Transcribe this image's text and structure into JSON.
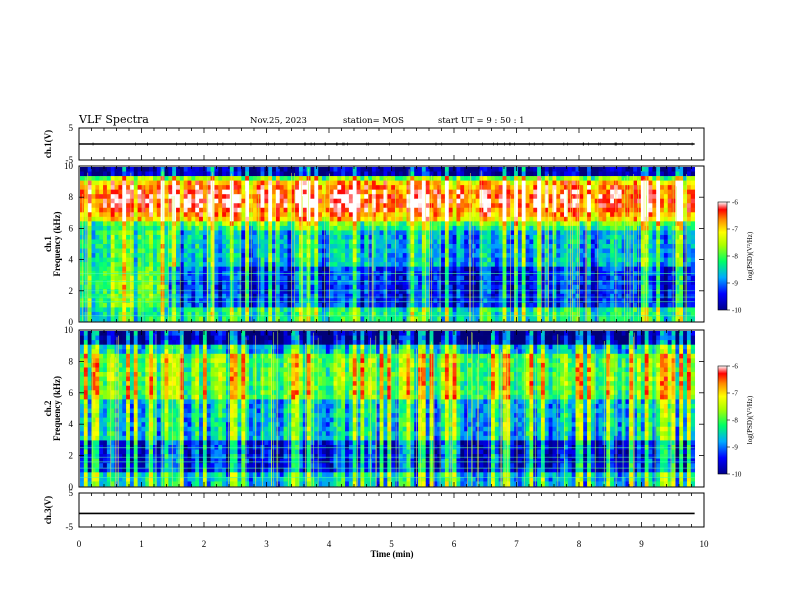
{
  "header": {
    "title": "VLF Spectra",
    "date": "Nov.25, 2023",
    "station": "station= MOS",
    "start": "start  UT =   9 : 50 : 1"
  },
  "chart_data": [
    {
      "type": "line",
      "name": "ch1-waveform",
      "ylabel": "ch.1(V)",
      "xlim": [
        0,
        10
      ],
      "ylim": [
        -5,
        5
      ],
      "yticks": [
        "5",
        "-5"
      ],
      "x": [
        0,
        9.85
      ],
      "y": [
        0,
        0
      ]
    },
    {
      "type": "heatmap",
      "name": "ch1-spectrogram",
      "ylabel": "ch.1\nFrequency (kHz)",
      "ylabel_lines": [
        "ch.1",
        "Frequency (kHz)"
      ],
      "xlim": [
        0,
        10
      ],
      "ylim": [
        0,
        10
      ],
      "yticks": [
        "0",
        "2",
        "4",
        "6",
        "8",
        "10"
      ],
      "data_x_end": 9.85,
      "colorbar": {
        "label": "log(PSD)(V²/Hz)",
        "range": [
          -10,
          -6
        ],
        "ticks": [
          "-6",
          "-7",
          "-8",
          "-9",
          "-10"
        ]
      }
    },
    {
      "type": "heatmap",
      "name": "ch2-spectrogram",
      "ylabel": "ch.2\nFrequency (kHz)",
      "ylabel_lines": [
        "ch.2",
        "Frequency (kHz)"
      ],
      "xlim": [
        0,
        10
      ],
      "ylim": [
        0,
        10
      ],
      "yticks": [
        "0",
        "2",
        "4",
        "6",
        "8",
        "10"
      ],
      "data_x_end": 9.85,
      "colorbar": {
        "label": "log(PSD)(V²/Hz)",
        "range": [
          -10,
          -6
        ],
        "ticks": [
          "-6",
          "-7",
          "-8",
          "-9",
          "-10"
        ]
      }
    },
    {
      "type": "line",
      "name": "ch3-waveform",
      "ylabel": "ch.3(V)",
      "xlim": [
        0,
        10
      ],
      "ylim": [
        -5,
        5
      ],
      "yticks": [
        "5",
        "-5"
      ],
      "x": [
        0,
        9.85
      ],
      "y": [
        -1,
        -1
      ]
    }
  ],
  "x_axis": {
    "label": "Time  (min)",
    "ticks": [
      "0",
      "1",
      "2",
      "3",
      "4",
      "5",
      "6",
      "7",
      "8",
      "9",
      "10"
    ]
  },
  "colors": {
    "background": "#ffffff",
    "axes": "#000000",
    "scale_min": "#00008b",
    "scale_max": "#ffffff"
  }
}
